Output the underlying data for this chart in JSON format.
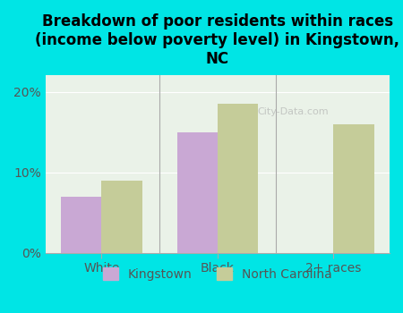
{
  "title": "Breakdown of poor residents within races\n(income below poverty level) in Kingstown,\nNC",
  "categories": [
    "White",
    "Black",
    "2+ races"
  ],
  "kingstown_values": [
    7.0,
    15.0,
    0.0
  ],
  "nc_values": [
    9.0,
    18.5,
    16.0
  ],
  "kingstown_color": "#c9a8d4",
  "nc_color": "#c5cc99",
  "background_color": "#00e5e5",
  "plot_bg_color": "#eaf2e8",
  "ylim": [
    0,
    22
  ],
  "yticks": [
    0,
    10,
    20
  ],
  "ytick_labels": [
    "0%",
    "10%",
    "20%"
  ],
  "bar_width": 0.35,
  "legend_labels": [
    "Kingstown",
    "North Carolina"
  ],
  "title_fontsize": 12,
  "tick_fontsize": 10,
  "legend_fontsize": 10
}
